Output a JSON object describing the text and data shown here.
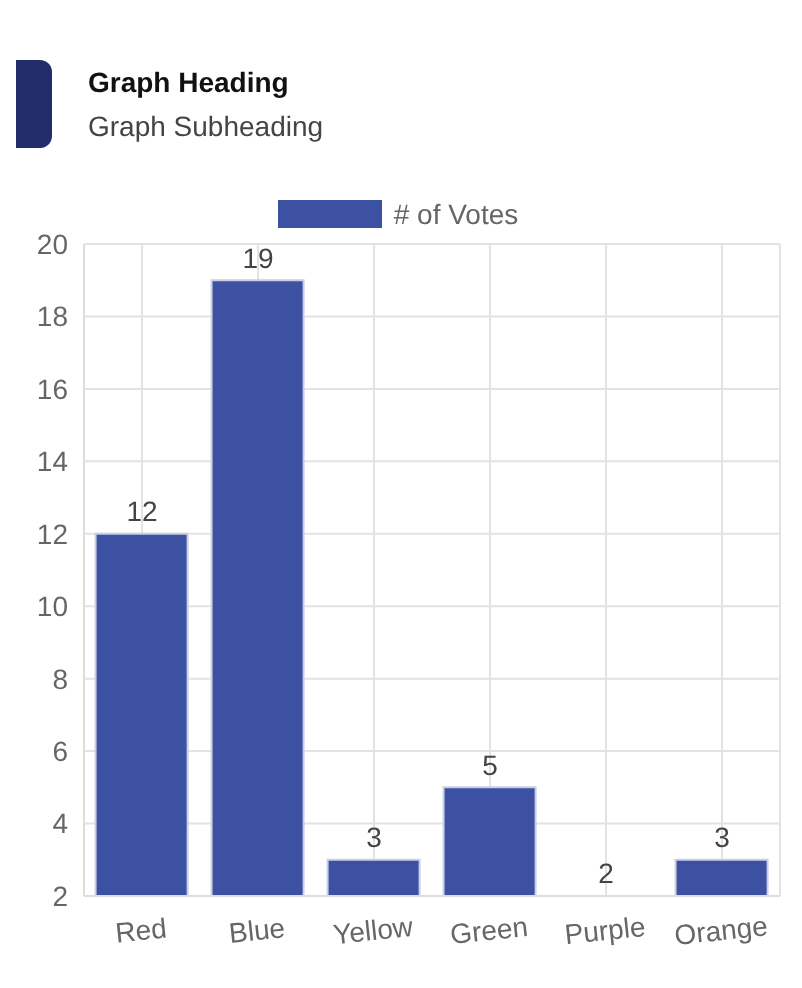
{
  "chart_data": {
    "type": "bar",
    "title": "Graph Heading",
    "subtitle": "Graph Subheading",
    "categories": [
      "Red",
      "Blue",
      "Yellow",
      "Green",
      "Purple",
      "Orange"
    ],
    "series": [
      {
        "name": "# of Votes",
        "color": "#3d51a3",
        "values": [
          12,
          19,
          3,
          5,
          2,
          3
        ]
      }
    ],
    "ylim": [
      2,
      20
    ],
    "yticks": [
      2,
      4,
      6,
      8,
      10,
      12,
      14,
      16,
      18,
      20
    ],
    "grid": true,
    "legend": "top",
    "data_labels": true
  }
}
